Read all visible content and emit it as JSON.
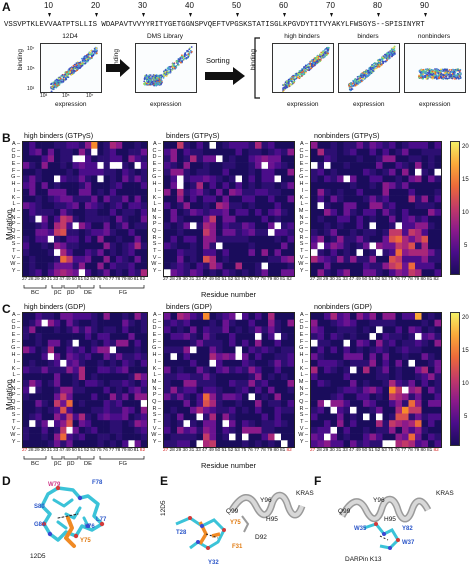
{
  "panelA": {
    "label": "A",
    "seq_numbers": [
      "10",
      "20",
      "30",
      "40",
      "50",
      "60",
      "70",
      "80",
      "90"
    ],
    "sequence": "VSSVPTKLEVVAATPTSLLIS WDAPAVTVVYYRITYGETGGNSPVQEFTVPGSKSTATISGLKPGVDYTITVYAKYLFWSGYS--SPISINYRT",
    "facs": [
      {
        "title": "12D4",
        "xlabel": "expression",
        "ylabel": "binding"
      },
      {
        "title": "DMS Library",
        "xlabel": "expression",
        "ylabel": "binding"
      },
      {
        "title": "high binders",
        "xlabel": "expression",
        "ylabel": "binding"
      },
      {
        "title": "binders",
        "xlabel": "expression",
        "ylabel": "binding"
      },
      {
        "title": "nonbinders",
        "xlabel": "expression",
        "ylabel": "binding"
      }
    ],
    "sorting_label": "Sorting",
    "tick_labels": [
      "10³",
      "10⁵",
      "10⁷"
    ]
  },
  "panelB": {
    "label": "B",
    "maps": [
      {
        "title": "high binders (GTPγS)"
      },
      {
        "title": "binders (GTPγS)"
      },
      {
        "title": "nonbinders (GTPγS)"
      }
    ],
    "ylabel": "Mutation",
    "xlabel": "Residue number",
    "cbar_ticks": [
      "20",
      "15",
      "10",
      "5"
    ],
    "loops": [
      "BC",
      "βC",
      "βD",
      "DE",
      "FG"
    ]
  },
  "panelC": {
    "label": "C",
    "maps": [
      {
        "title": "high binders (GDP)"
      },
      {
        "title": "binders (GDP)"
      },
      {
        "title": "nonbinders (GDP)"
      }
    ],
    "ylabel": "Mutation",
    "xlabel": "Residue number",
    "cbar_ticks": [
      "20",
      "15",
      "10",
      "5"
    ],
    "loops": [
      "BC",
      "βC",
      "βD",
      "DE",
      "FG"
    ]
  },
  "mutations": [
    "A",
    "C",
    "D",
    "E",
    "F",
    "G",
    "H",
    "I",
    "K",
    "L",
    "M",
    "N",
    "P",
    "Q",
    "R",
    "S",
    "T",
    "V",
    "W",
    "Y"
  ],
  "residues": [
    "27",
    "28",
    "29",
    "30",
    "31",
    "33",
    "47",
    "49",
    "50",
    "51",
    "52",
    "53",
    "75",
    "76",
    "77",
    "78",
    "79",
    "80",
    "81",
    "82"
  ],
  "residues_C_red": [
    "27",
    "82"
  ],
  "panelD": {
    "label": "D",
    "name": "12D5",
    "residues": [
      "W79",
      "F78",
      "S80",
      "G81",
      "L77",
      "Y76",
      "Y75"
    ]
  },
  "panelE": {
    "label": "E",
    "name": "12D5",
    "protein": "KRAS",
    "residues": [
      "Y96",
      "Q99",
      "H95",
      "Y75",
      "D92",
      "T28",
      "F31",
      "Y32"
    ]
  },
  "panelF": {
    "label": "F",
    "name": "DARPin K13",
    "protein": "KRAS",
    "residues": [
      "Y96",
      "Q99",
      "H95",
      "W35",
      "Y82",
      "W37"
    ]
  }
}
